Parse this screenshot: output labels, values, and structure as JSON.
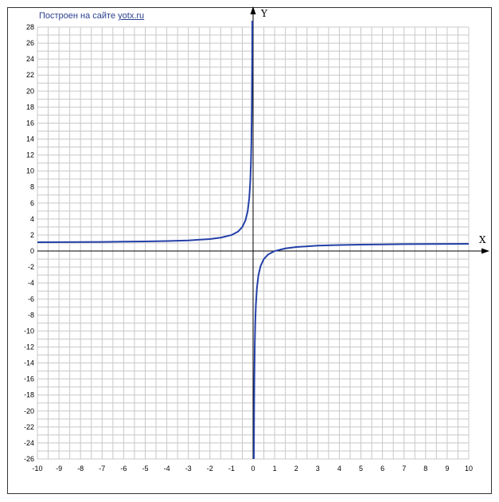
{
  "credit": {
    "text": "Построен на сайте",
    "link": "yotx.ru"
  },
  "colors": {
    "grid": "#c8c8c8",
    "axis": "#000000",
    "curve": "#2340a8",
    "frame": "#333333",
    "credit": "#2a3f8f"
  },
  "chart_data": {
    "type": "line",
    "xlabel": "X",
    "ylabel": "Y",
    "xlim": [
      -10,
      10
    ],
    "ylim": [
      -26,
      28
    ],
    "grid": true,
    "x_ticks": [
      "-10",
      "-9",
      "-8",
      "-7",
      "-6",
      "-5",
      "-4",
      "-3",
      "-2",
      "-1",
      "0",
      "1",
      "2",
      "3",
      "4",
      "5",
      "6",
      "7",
      "8",
      "9",
      "10"
    ],
    "y_ticks": [
      "28",
      "26",
      "24",
      "22",
      "20",
      "18",
      "16",
      "14",
      "12",
      "10",
      "8",
      "6",
      "4",
      "2",
      "0",
      "-2",
      "-4",
      "-6",
      "-8",
      "-10",
      "-12",
      "-14",
      "-16",
      "-18",
      "-20",
      "-22",
      "-24",
      "-26"
    ],
    "series": [
      {
        "values_left": [
          [
            -10,
            1.1
          ],
          [
            -9,
            1.11
          ],
          [
            -8,
            1.13
          ],
          [
            -7,
            1.14
          ],
          [
            -6,
            1.17
          ],
          [
            -5,
            1.2
          ],
          [
            -4,
            1.25
          ],
          [
            -3,
            1.33
          ],
          [
            -2,
            1.5
          ],
          [
            -1.5,
            1.67
          ],
          [
            -1,
            2.0
          ],
          [
            -0.7,
            2.43
          ],
          [
            -0.5,
            3.0
          ],
          [
            -0.35,
            3.86
          ],
          [
            -0.25,
            5.0
          ],
          [
            -0.18,
            6.56
          ],
          [
            -0.13,
            8.69
          ],
          [
            -0.1,
            11.0
          ],
          [
            -0.08,
            13.5
          ],
          [
            -0.06,
            17.67
          ],
          [
            -0.045,
            23.2
          ],
          [
            -0.036,
            28.8
          ]
        ],
        "values_right": [
          [
            0.035,
            -27.6
          ],
          [
            0.04,
            -24.0
          ],
          [
            0.05,
            -19.0
          ],
          [
            0.06,
            -15.67
          ],
          [
            0.08,
            -11.5
          ],
          [
            0.1,
            -9.0
          ],
          [
            0.13,
            -6.69
          ],
          [
            0.18,
            -4.56
          ],
          [
            0.25,
            -3.0
          ],
          [
            0.35,
            -1.86
          ],
          [
            0.5,
            -1.0
          ],
          [
            0.7,
            -0.43
          ],
          [
            1,
            0.0
          ],
          [
            1.5,
            0.33
          ],
          [
            2,
            0.5
          ],
          [
            3,
            0.67
          ],
          [
            4,
            0.75
          ],
          [
            5,
            0.8
          ],
          [
            6,
            0.83
          ],
          [
            7,
            0.86
          ],
          [
            8,
            0.875
          ],
          [
            9,
            0.89
          ],
          [
            10,
            0.9
          ]
        ]
      }
    ]
  }
}
